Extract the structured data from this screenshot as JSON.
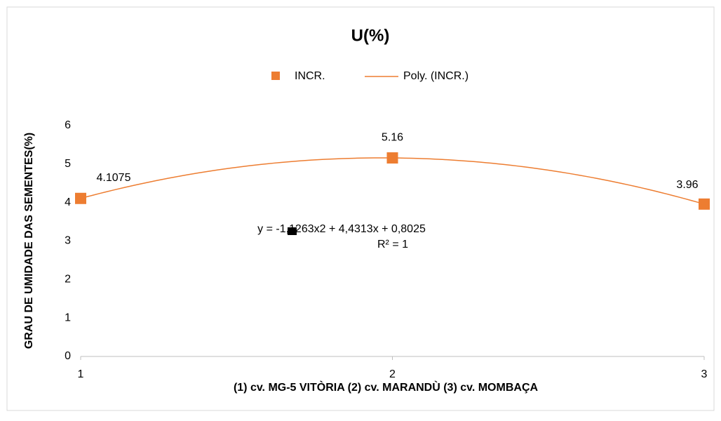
{
  "chart_data": {
    "type": "scatter",
    "title": "U(%)",
    "x_label": "(1) cv. MG-5 VITÒRIA (2) cv. MARANDÙ (3) cv. MOMBAÇA",
    "y_label": "GRAU DE UMIDADE DAS SEMENTES(%)",
    "x": [
      1,
      2,
      3
    ],
    "series": [
      {
        "name": "INCR.",
        "color": "#ed7d31",
        "values": [
          4.1075,
          5.16,
          3.96
        ]
      }
    ],
    "trendline": {
      "name": "Poly. (INCR.)",
      "color": "#ed7d31",
      "equation": "y = -1,1263x2 + 4,4313x + 0,8025",
      "r_squared": "R² = 1"
    },
    "xlim": [
      1,
      3
    ],
    "xticks": [
      1,
      2,
      3
    ],
    "ylim": [
      0,
      6
    ],
    "yticks": [
      0,
      1,
      2,
      3,
      4,
      5,
      6
    ]
  }
}
